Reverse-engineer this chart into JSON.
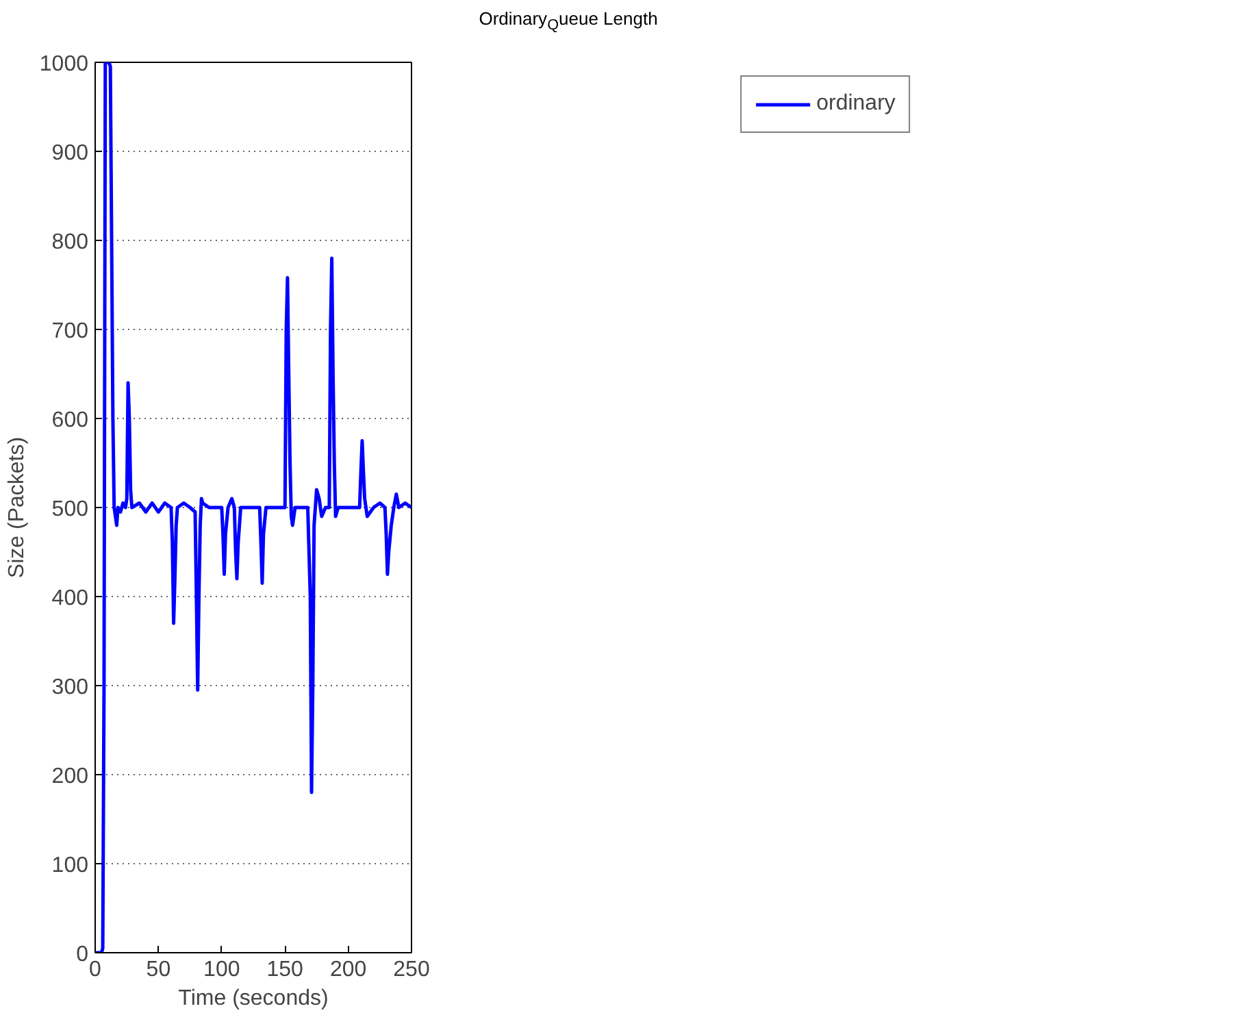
{
  "chart_data": {
    "type": "line",
    "title": "Ordinary$_{Q}$ueue Length",
    "xlabel": "Time (seconds)",
    "ylabel": "Size (Packets)",
    "xlim": [
      0,
      250
    ],
    "xticks": [
      0,
      50,
      100,
      150,
      200,
      250
    ],
    "ylim": [
      0,
      1000
    ],
    "yticks": [
      0,
      100,
      200,
      300,
      400,
      500,
      600,
      700,
      800,
      900,
      1000
    ],
    "grid": "y",
    "legend": "top right",
    "line_style": "solid",
    "series": [
      {
        "name": "ordinary",
        "color": "#0000ff",
        "x": [
          0,
          5,
          6,
          7,
          8,
          11,
          12,
          13,
          14,
          15,
          16,
          17,
          18,
          20,
          22,
          24,
          25,
          26,
          27,
          28,
          29,
          35,
          40,
          45,
          50,
          55,
          60,
          61,
          62,
          63,
          64,
          65,
          70,
          75,
          79,
          80,
          81,
          82,
          83,
          84,
          85,
          90,
          95,
          100,
          101,
          102,
          103,
          105,
          108,
          110,
          111,
          112,
          113,
          115,
          120,
          125,
          130,
          131,
          132,
          133,
          135,
          140,
          145,
          150,
          151,
          152,
          153,
          154,
          155,
          156,
          158,
          165,
          168,
          170,
          171,
          172,
          173,
          175,
          177,
          179,
          182,
          185,
          186,
          187,
          188,
          189,
          190,
          192,
          200,
          205,
          209,
          210,
          211,
          212,
          213,
          215,
          220,
          225,
          229,
          230,
          231,
          232,
          234,
          236,
          238,
          240,
          245,
          250
        ],
        "values": [
          0,
          0,
          5,
          300,
          1000,
          1000,
          995,
          800,
          600,
          500,
          490,
          480,
          500,
          495,
          505,
          500,
          510,
          640,
          600,
          520,
          500,
          505,
          495,
          505,
          495,
          505,
          500,
          460,
          370,
          420,
          480,
          500,
          505,
          500,
          495,
          400,
          295,
          400,
          480,
          510,
          505,
          500,
          500,
          500,
          470,
          425,
          470,
          500,
          510,
          500,
          450,
          420,
          460,
          500,
          500,
          500,
          500,
          460,
          415,
          470,
          500,
          500,
          500,
          500,
          700,
          758,
          650,
          550,
          490,
          480,
          500,
          500,
          500,
          400,
          180,
          300,
          480,
          520,
          510,
          490,
          500,
          500,
          700,
          780,
          650,
          550,
          490,
          500,
          500,
          500,
          500,
          540,
          575,
          540,
          510,
          490,
          500,
          505,
          500,
          470,
          425,
          450,
          480,
          500,
          515,
          500,
          505,
          500
        ]
      }
    ]
  }
}
